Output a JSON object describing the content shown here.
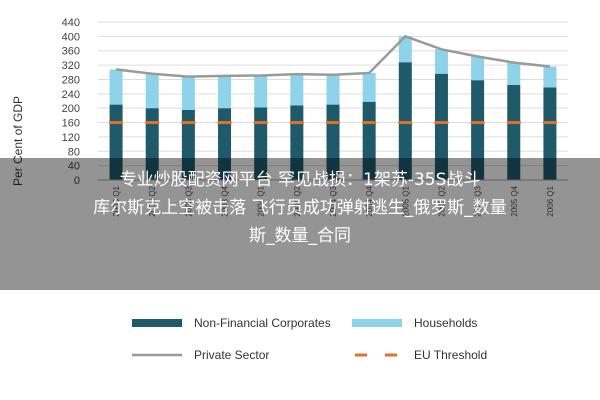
{
  "chart_data": {
    "type": "bar",
    "ylabel": "Per Cent of GDP",
    "ylim": [
      0,
      440
    ],
    "yticks": [
      0,
      40,
      80,
      120,
      160,
      200,
      240,
      280,
      320,
      360,
      400,
      440
    ],
    "categories": [
      "2003 Q1",
      "2003 Q2",
      "2003 Q3",
      "2003 Q4",
      "2004 Q1",
      "2004 Q2",
      "2004 Q3",
      "2004 Q4",
      "2005 Q1",
      "2005 Q2",
      "2005 Q3",
      "2005 Q4",
      "2006 Q1"
    ],
    "stacked": true,
    "series": [
      {
        "name": "Non-Financial Corporates",
        "kind": "bar",
        "color": "#1f5a6b",
        "values": [
          210,
          200,
          195,
          200,
          202,
          208,
          210,
          218,
          328,
          296,
          278,
          265,
          258
        ]
      },
      {
        "name": "Households",
        "kind": "bar",
        "color": "#8fd3ea",
        "values": [
          98,
          96,
          93,
          90,
          89,
          87,
          83,
          80,
          72,
          68,
          66,
          62,
          58
        ]
      },
      {
        "name": "Private Sector",
        "kind": "line",
        "color": "#9a9a9a",
        "values": [
          308,
          296,
          288,
          290,
          291,
          295,
          293,
          298,
          400,
          364,
          344,
          327,
          316
        ]
      },
      {
        "name": "EU Threshold",
        "kind": "dash",
        "color": "#e0702a",
        "values": [
          160,
          160,
          160,
          160,
          160,
          160,
          160,
          160,
          160,
          160,
          160,
          160,
          160
        ]
      }
    ],
    "grid": true,
    "legend": "bottom"
  },
  "overlay": {
    "line1": "专业炒股配资网平台 罕见战损：1架苏-35S战斗",
    "line2": "库尔斯克上空被击落 飞行员成功弹射逃生_俄罗斯_数量",
    "line3": "斯_数量_合同"
  }
}
